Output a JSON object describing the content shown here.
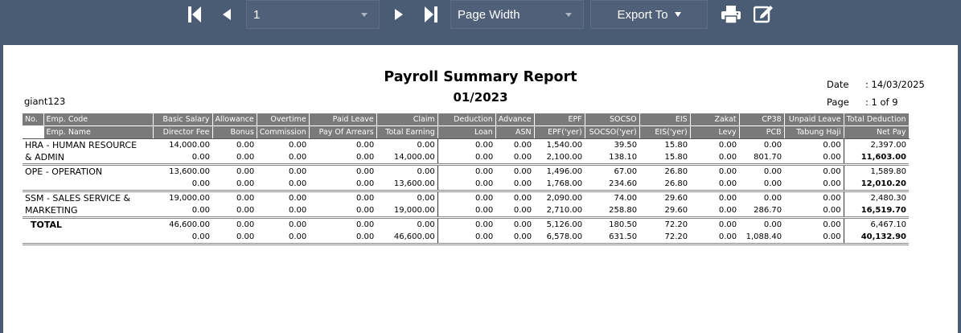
{
  "toolbar": {
    "page_value": "1",
    "zoom_value": "Page Width",
    "export_label": "Export To",
    "icons": [
      "first-page-icon",
      "prev-page-icon",
      "next-page-icon",
      "last-page-icon",
      "print-icon",
      "edit-icon"
    ]
  },
  "report": {
    "title": "Payroll Summary Report",
    "period": "01/2023",
    "user": "giant123",
    "date_label": "Date",
    "date_value": ": 14/03/2025",
    "page_label": "Page",
    "page_value": ": 1 of 9"
  },
  "table": {
    "header1": [
      "No.",
      "Emp. Code",
      "Basic Salary",
      "Allowance",
      "Overtime",
      "Paid Leave",
      "Claim",
      "Deduction",
      "Advance",
      "EPF",
      "SOCSO",
      "EIS",
      "Zakat",
      "CP38",
      "Unpaid Leave",
      "Total Deduction"
    ],
    "header2": [
      "",
      "Emp. Name",
      "Director Fee",
      "Bonus",
      "Commission",
      "Pay Of Arrears",
      "Total Earning",
      "Loan",
      "ASN",
      "EPF('yer)",
      "SOCSO('yer)",
      "EIS('yer)",
      "Levy",
      "PCB",
      "Tabung Haji",
      "Net Pay"
    ],
    "groups": [
      {
        "dept_line1": "HRA - HUMAN RESOURCE",
        "dept_line2": "& ADMIN",
        "row1": [
          "14,000.00",
          "0.00",
          "0.00",
          "0.00",
          "0.00",
          "0.00",
          "0.00",
          "1,540.00",
          "39.50",
          "15.80",
          "0.00",
          "0.00",
          "0.00",
          "2,397.00"
        ],
        "row2": [
          "0.00",
          "0.00",
          "0.00",
          "0.00",
          "14,000.00",
          "0.00",
          "0.00",
          "2,100.00",
          "138.10",
          "15.80",
          "0.00",
          "801.70",
          "0.00",
          "11,603.00"
        ]
      },
      {
        "dept_line1": "OPE - OPERATION",
        "dept_line2": "",
        "row1": [
          "13,600.00",
          "0.00",
          "0.00",
          "0.00",
          "0.00",
          "0.00",
          "0.00",
          "1,496.00",
          "67.00",
          "26.80",
          "0.00",
          "0.00",
          "0.00",
          "1,589.80"
        ],
        "row2": [
          "0.00",
          "0.00",
          "0.00",
          "0.00",
          "13,600.00",
          "0.00",
          "0.00",
          "1,768.00",
          "234.60",
          "26.80",
          "0.00",
          "0.00",
          "0.00",
          "12,010.20"
        ]
      },
      {
        "dept_line1": "SSM - SALES SERVICE &",
        "dept_line2": "MARKETING",
        "row1": [
          "19,000.00",
          "0.00",
          "0.00",
          "0.00",
          "0.00",
          "0.00",
          "0.00",
          "2,090.00",
          "74.00",
          "29.60",
          "0.00",
          "0.00",
          "0.00",
          "2,480.30"
        ],
        "row2": [
          "0.00",
          "0.00",
          "0.00",
          "0.00",
          "19,000.00",
          "0.00",
          "0.00",
          "2,710.00",
          "258.80",
          "29.60",
          "0.00",
          "286.70",
          "0.00",
          "16,519.70"
        ]
      }
    ],
    "total": {
      "label": "TOTAL",
      "row1": [
        "46,600.00",
        "0.00",
        "0.00",
        "0.00",
        "0.00",
        "0.00",
        "0.00",
        "5,126.00",
        "180.50",
        "72.20",
        "0.00",
        "0.00",
        "0.00",
        "6,467.10"
      ],
      "row2": [
        "0.00",
        "0.00",
        "0.00",
        "0.00",
        "46,600.00",
        "0.00",
        "0.00",
        "6,578.00",
        "631.50",
        "72.20",
        "0.00",
        "1,088.40",
        "0.00",
        "40,132.90"
      ]
    }
  }
}
